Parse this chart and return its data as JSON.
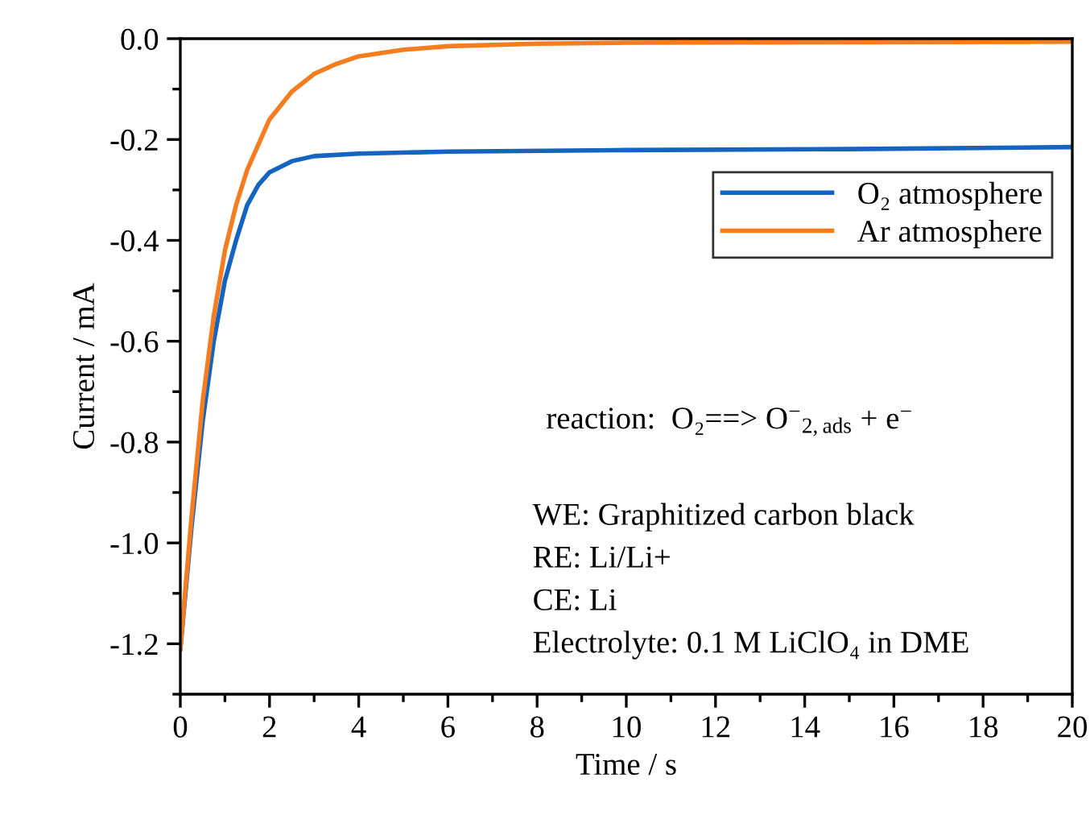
{
  "chart_data": {
    "type": "line",
    "xlabel": "Time / s",
    "ylabel": "Current / mA",
    "xlim": [
      0,
      20
    ],
    "xticks": [
      0,
      2,
      4,
      6,
      8,
      10,
      12,
      14,
      16,
      18,
      20
    ],
    "ylim": [
      -1.3,
      0
    ],
    "yticks": [
      -1.2,
      {
        "value": -1,
        "label": "-1.0"
      },
      -0.8,
      -0.6,
      -0.4,
      -0.2,
      {
        "value": 0,
        "label": "0.0"
      }
    ],
    "grid": false,
    "legend": "top right",
    "marker": "none",
    "line_style": "solid",
    "series": [
      {
        "name": "O₂ atmosphere",
        "color": "#1565c0",
        "x": [
          0,
          0.25,
          0.5,
          0.75,
          1,
          1.25,
          1.5,
          1.75,
          2,
          2.5,
          3,
          4,
          6,
          10,
          15,
          20
        ],
        "values": [
          -1.21,
          -0.97,
          -0.76,
          -0.6,
          -0.48,
          -0.4,
          -0.33,
          -0.29,
          -0.265,
          -0.243,
          -0.233,
          -0.228,
          -0.224,
          -0.221,
          -0.219,
          -0.215
        ]
      },
      {
        "name": "Ar atmosphere",
        "color": "#f57c1f",
        "x": [
          0,
          0.25,
          0.5,
          0.75,
          1,
          1.25,
          1.5,
          2,
          2.5,
          3,
          3.5,
          4,
          5,
          6,
          8,
          10,
          14,
          20
        ],
        "values": [
          -1.21,
          -0.95,
          -0.72,
          -0.55,
          -0.42,
          -0.33,
          -0.26,
          -0.16,
          -0.105,
          -0.07,
          -0.05,
          -0.035,
          -0.022,
          -0.015,
          -0.01,
          -0.008,
          -0.007,
          -0.006
        ]
      }
    ],
    "annotations": [
      "reaction:  O₂==> O$^{−}$$_{2,ads}$ + e$^{−}$",
      "WE: Graphitized carbon black",
      "RE: Li/Li+",
      "CE: Li",
      "Electrolyte: 0.1 M LiClO₄ in DME"
    ]
  }
}
